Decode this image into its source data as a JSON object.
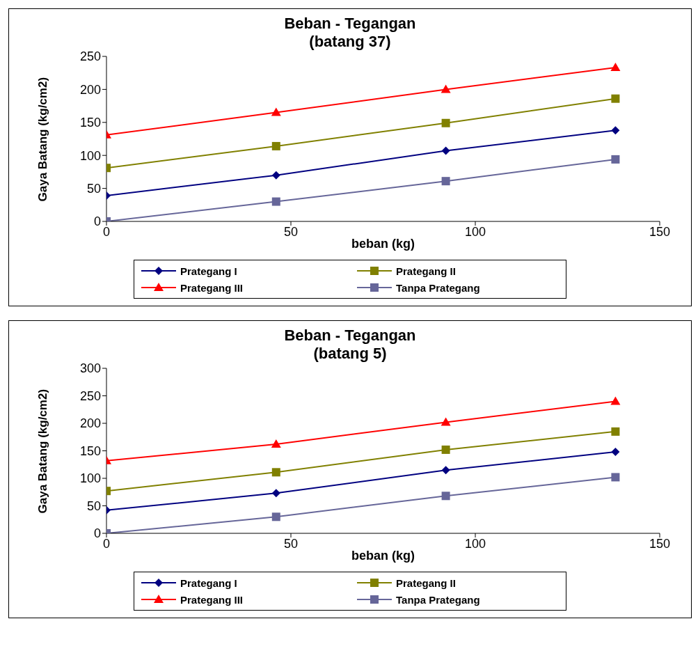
{
  "chart_data": [
    {
      "type": "line",
      "title": "Beban - Tegangan\n(batang 37)",
      "xlabel": "beban (kg)",
      "ylabel": "Gaya Batang (kg/cm2)",
      "x": [
        0,
        46,
        92,
        138
      ],
      "xlim": [
        0,
        150
      ],
      "xticks": [
        0,
        50,
        100,
        150
      ],
      "ylim": [
        0,
        250
      ],
      "yticks": [
        0,
        50,
        100,
        150,
        200,
        250
      ],
      "grid": false,
      "legend": "bottom",
      "series": [
        {
          "name": "Prategang I",
          "color": "#000080",
          "marker": "diamond",
          "values": [
            39,
            70,
            107,
            138
          ]
        },
        {
          "name": "Prategang II",
          "color": "#808000",
          "marker": "square",
          "values": [
            81,
            114,
            149,
            186
          ]
        },
        {
          "name": "Prategang III",
          "color": "#ff0000",
          "marker": "triangle",
          "values": [
            131,
            165,
            200,
            233
          ]
        },
        {
          "name": "Tanpa Prategang",
          "color": "#666699",
          "marker": "square",
          "values": [
            0,
            30,
            61,
            94
          ]
        }
      ]
    },
    {
      "type": "line",
      "title": "Beban - Tegangan\n(batang 5)",
      "xlabel": "beban (kg)",
      "ylabel": "Gaya Batang (kg/cm2)",
      "x": [
        0,
        46,
        92,
        138
      ],
      "xlim": [
        0,
        150
      ],
      "xticks": [
        0,
        50,
        100,
        150
      ],
      "ylim": [
        0,
        300
      ],
      "yticks": [
        0,
        50,
        100,
        150,
        200,
        250,
        300
      ],
      "grid": false,
      "legend": "bottom",
      "series": [
        {
          "name": "Prategang I",
          "color": "#000080",
          "marker": "diamond",
          "values": [
            42,
            73,
            115,
            148
          ]
        },
        {
          "name": "Prategang II",
          "color": "#808000",
          "marker": "square",
          "values": [
            77,
            111,
            152,
            185
          ]
        },
        {
          "name": "Prategang III",
          "color": "#ff0000",
          "marker": "triangle",
          "values": [
            132,
            162,
            202,
            240
          ]
        },
        {
          "name": "Tanpa Prategang",
          "color": "#666699",
          "marker": "square",
          "values": [
            0,
            30,
            68,
            102
          ]
        }
      ]
    }
  ]
}
